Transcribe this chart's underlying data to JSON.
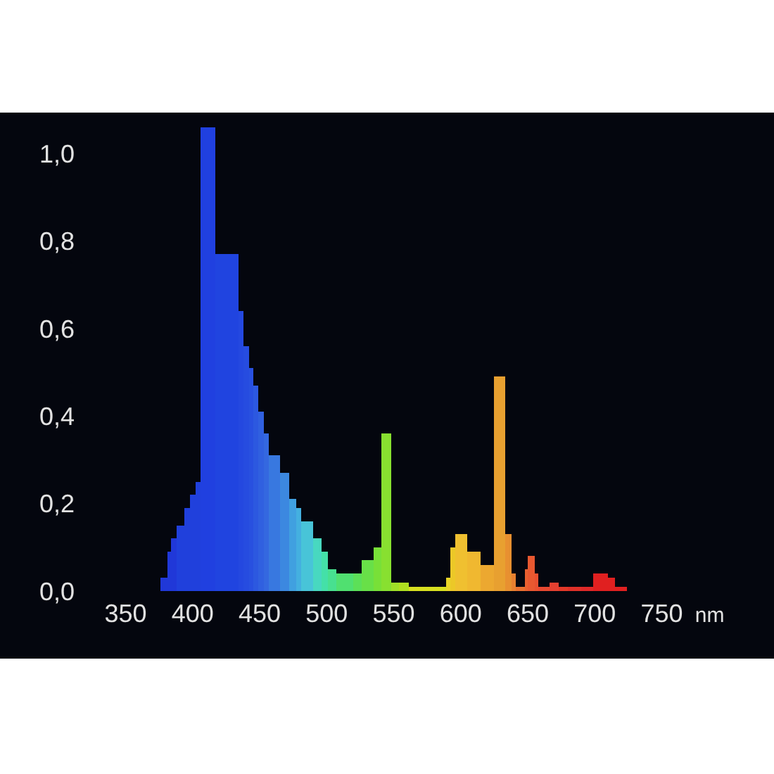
{
  "chart_data": {
    "type": "histogram",
    "xlabel": "nm",
    "bins": [
      376,
      381,
      384,
      388,
      394,
      398,
      402,
      406,
      417,
      434,
      438,
      442,
      445,
      449,
      453,
      457,
      465,
      472,
      477,
      481,
      490,
      496,
      501,
      507,
      520,
      526,
      535,
      541,
      548,
      554,
      561,
      589,
      592,
      596,
      605,
      615,
      625,
      633,
      638,
      641,
      648,
      650,
      655,
      658,
      666,
      673,
      680,
      690,
      699,
      710,
      715,
      724
    ],
    "values": [
      0.03,
      0.09,
      0.12,
      0.15,
      0.19,
      0.22,
      0.25,
      1.06,
      0.77,
      0.64,
      0.56,
      0.51,
      0.47,
      0.41,
      0.36,
      0.31,
      0.27,
      0.21,
      0.19,
      0.16,
      0.12,
      0.09,
      0.05,
      0.04,
      0.04,
      0.07,
      0.1,
      0.36,
      0.02,
      0.02,
      0.01,
      0.03,
      0.1,
      0.13,
      0.09,
      0.06,
      0.49,
      0.13,
      0.04,
      0.01,
      0.05,
      0.08,
      0.04,
      0.01,
      0.02,
      0.01,
      0.01,
      0.01,
      0.04,
      0.03,
      0.01
    ],
    "colors": [
      "#2038d8",
      "#2038d8",
      "#2038d8",
      "#2040dc",
      "#2040dc",
      "#2040dc",
      "#2040dc",
      "#2040e0",
      "#2044e0",
      "#2448e0",
      "#264ce0",
      "#2850e0",
      "#2c58e0",
      "#3060e0",
      "#3468e0",
      "#3878e0",
      "#3c88e0",
      "#40a0e0",
      "#44b0e0",
      "#48c4d8",
      "#48d8c0",
      "#44e0a8",
      "#48e090",
      "#50e070",
      "#5ce058",
      "#68e048",
      "#78e038",
      "#88e030",
      "#a0e028",
      "#b0e020",
      "#d8e020",
      "#e8d428",
      "#ecc828",
      "#f0c030",
      "#f0b830",
      "#eca830",
      "#e8a030",
      "#e89030",
      "#e88030",
      "#e87030",
      "#e86030",
      "#e85830",
      "#e85030",
      "#e84830",
      "#e44030",
      "#e43828",
      "#e03028",
      "#e02828",
      "#e02020",
      "#e02020",
      "#e02020"
    ],
    "xlim": [
      350,
      750
    ],
    "xticks": [
      350,
      400,
      450,
      500,
      550,
      600,
      650,
      700,
      750
    ],
    "ylim": [
      0,
      1.1
    ],
    "yticks": [
      {
        "value": 0,
        "label": "0,0"
      },
      {
        "value": 0.2,
        "label": "0,2"
      },
      {
        "value": 0.4,
        "label": "0,4"
      },
      {
        "value": 0.6,
        "label": "0,6"
      },
      {
        "value": 0.8,
        "label": "0,8"
      },
      {
        "value": 1,
        "label": "1,0"
      }
    ]
  }
}
